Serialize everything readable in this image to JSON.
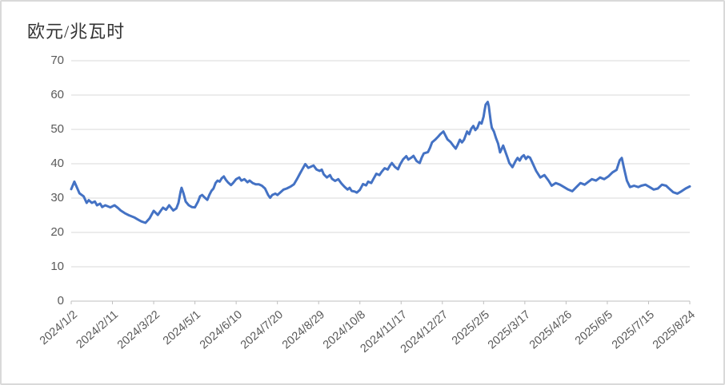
{
  "colors": {
    "line": "#4472C4",
    "gridline": "#D9D9D9",
    "axis": "#BFBFBF",
    "tick_label": "#595959",
    "title_text": "#333333",
    "frame_border": "#D9D9D9"
  },
  "chart_data": {
    "type": "line",
    "title": "欧元/兆瓦时",
    "xlabel": "",
    "ylabel": "欧元/兆瓦时",
    "ylim": [
      0,
      70
    ],
    "y_ticks": [
      0,
      10,
      20,
      30,
      40,
      50,
      60,
      70
    ],
    "grid": "horizontal",
    "legend": "none",
    "x_tick_labels": [
      "2024/1/2",
      "2024/2/11",
      "2024/3/22",
      "2024/5/1",
      "2024/6/10",
      "2024/7/20",
      "2024/8/29",
      "2024/10/8",
      "2024/11/17",
      "2024/12/27",
      "2025/2/5",
      "2025/3/17",
      "2025/4/26",
      "2025/6/5",
      "2025/7/15",
      "2025/8/24"
    ],
    "series": [
      {
        "points": [
          [
            "2024/1/2",
            32.6
          ],
          [
            "2024/1/5",
            34.8
          ],
          [
            "2024/1/8",
            32.8
          ],
          [
            "2024/1/10",
            31.4
          ],
          [
            "2024/1/14",
            30.5
          ],
          [
            "2024/1/17",
            28.6
          ],
          [
            "2024/1/19",
            29.4
          ],
          [
            "2024/1/22",
            28.6
          ],
          [
            "2024/1/25",
            29.0
          ],
          [
            "2024/1/27",
            27.9
          ],
          [
            "2024/1/30",
            28.4
          ],
          [
            "2024/2/1",
            27.4
          ],
          [
            "2024/2/4",
            27.9
          ],
          [
            "2024/2/9",
            27.3
          ],
          [
            "2024/2/13",
            27.9
          ],
          [
            "2024/2/16",
            27.2
          ],
          [
            "2024/2/19",
            26.4
          ],
          [
            "2024/2/23",
            25.6
          ],
          [
            "2024/2/27",
            25.0
          ],
          [
            "2024/3/3",
            24.4
          ],
          [
            "2024/3/7",
            23.7
          ],
          [
            "2024/3/10",
            23.2
          ],
          [
            "2024/3/14",
            22.8
          ],
          [
            "2024/3/18",
            24.1
          ],
          [
            "2024/3/22",
            26.3
          ],
          [
            "2024/3/26",
            25.1
          ],
          [
            "2024/3/29",
            26.4
          ],
          [
            "2024/3/31",
            27.2
          ],
          [
            "2024/4/3",
            26.6
          ],
          [
            "2024/4/6",
            27.9
          ],
          [
            "2024/4/10",
            26.4
          ],
          [
            "2024/4/13",
            27.0
          ],
          [
            "2024/4/15",
            28.6
          ],
          [
            "2024/4/17",
            31.8
          ],
          [
            "2024/4/18",
            33.0
          ],
          [
            "2024/4/20",
            31.3
          ],
          [
            "2024/4/22",
            29.0
          ],
          [
            "2024/4/25",
            27.9
          ],
          [
            "2024/4/28",
            27.4
          ],
          [
            "2024/5/1",
            27.3
          ],
          [
            "2024/5/4",
            29.0
          ],
          [
            "2024/5/6",
            30.5
          ],
          [
            "2024/5/8",
            30.9
          ],
          [
            "2024/5/11",
            30.0
          ],
          [
            "2024/5/13",
            29.5
          ],
          [
            "2024/5/15",
            30.9
          ],
          [
            "2024/5/17",
            32.1
          ],
          [
            "2024/5/19",
            32.8
          ],
          [
            "2024/5/21",
            34.4
          ],
          [
            "2024/5/23",
            35.1
          ],
          [
            "2024/5/25",
            34.8
          ],
          [
            "2024/5/27",
            35.8
          ],
          [
            "2024/5/29",
            36.3
          ],
          [
            "2024/5/31",
            35.3
          ],
          [
            "2024/6/2",
            34.6
          ],
          [
            "2024/6/5",
            33.8
          ],
          [
            "2024/6/7",
            34.4
          ],
          [
            "2024/6/10",
            35.5
          ],
          [
            "2024/6/13",
            36.0
          ],
          [
            "2024/6/15",
            35.1
          ],
          [
            "2024/6/18",
            35.5
          ],
          [
            "2024/6/21",
            34.6
          ],
          [
            "2024/6/23",
            35.1
          ],
          [
            "2024/6/26",
            34.4
          ],
          [
            "2024/6/29",
            34.0
          ],
          [
            "2024/7/2",
            34.0
          ],
          [
            "2024/7/5",
            33.6
          ],
          [
            "2024/7/8",
            32.8
          ],
          [
            "2024/7/11",
            30.9
          ],
          [
            "2024/7/13",
            30.1
          ],
          [
            "2024/7/15",
            30.9
          ],
          [
            "2024/7/18",
            31.3
          ],
          [
            "2024/7/20",
            30.9
          ],
          [
            "2024/7/23",
            31.7
          ],
          [
            "2024/7/26",
            32.5
          ],
          [
            "2024/7/29",
            32.8
          ],
          [
            "2024/8/2",
            33.4
          ],
          [
            "2024/8/5",
            34.0
          ],
          [
            "2024/8/8",
            35.5
          ],
          [
            "2024/8/11",
            37.2
          ],
          [
            "2024/8/13",
            38.3
          ],
          [
            "2024/8/16",
            39.9
          ],
          [
            "2024/8/19",
            38.8
          ],
          [
            "2024/8/22",
            39.2
          ],
          [
            "2024/8/24",
            39.5
          ],
          [
            "2024/8/27",
            38.3
          ],
          [
            "2024/8/30",
            37.9
          ],
          [
            "2024/9/1",
            38.3
          ],
          [
            "2024/9/3",
            36.9
          ],
          [
            "2024/9/6",
            36.0
          ],
          [
            "2024/9/9",
            36.7
          ],
          [
            "2024/9/11",
            35.6
          ],
          [
            "2024/9/14",
            35.0
          ],
          [
            "2024/9/17",
            35.5
          ],
          [
            "2024/9/20",
            34.3
          ],
          [
            "2024/9/23",
            33.3
          ],
          [
            "2024/9/26",
            32.5
          ],
          [
            "2024/9/28",
            33.0
          ],
          [
            "2024/9/30",
            32.1
          ],
          [
            "2024/10/3",
            31.9
          ],
          [
            "2024/10/5",
            31.6
          ],
          [
            "2024/10/8",
            32.4
          ],
          [
            "2024/10/11",
            34.1
          ],
          [
            "2024/10/14",
            33.7
          ],
          [
            "2024/10/16",
            34.8
          ],
          [
            "2024/10/19",
            34.4
          ],
          [
            "2024/10/21",
            35.5
          ],
          [
            "2024/10/24",
            37.1
          ],
          [
            "2024/10/27",
            36.7
          ],
          [
            "2024/10/29",
            37.6
          ],
          [
            "2024/11/1",
            38.7
          ],
          [
            "2024/11/4",
            38.3
          ],
          [
            "2024/11/6",
            39.4
          ],
          [
            "2024/11/8",
            40.2
          ],
          [
            "2024/11/11",
            39.1
          ],
          [
            "2024/11/14",
            38.4
          ],
          [
            "2024/11/16",
            39.8
          ],
          [
            "2024/11/19",
            41.3
          ],
          [
            "2024/11/22",
            42.2
          ],
          [
            "2024/11/24",
            41.2
          ],
          [
            "2024/11/27",
            41.8
          ],
          [
            "2024/11/29",
            42.3
          ],
          [
            "2024/12/2",
            40.8
          ],
          [
            "2024/12/5",
            40.2
          ],
          [
            "2024/12/7",
            41.8
          ],
          [
            "2024/12/9",
            43.0
          ],
          [
            "2024/12/13",
            43.4
          ],
          [
            "2024/12/15",
            44.6
          ],
          [
            "2024/12/17",
            46.2
          ],
          [
            "2024/12/20",
            47.0
          ],
          [
            "2024/12/23",
            47.9
          ],
          [
            "2024/12/25",
            48.6
          ],
          [
            "2024/12/28",
            49.4
          ],
          [
            "2024/12/30",
            48.2
          ],
          [
            "2025/1/1",
            47.1
          ],
          [
            "2025/1/4",
            46.3
          ],
          [
            "2025/1/7",
            45.1
          ],
          [
            "2025/1/9",
            44.4
          ],
          [
            "2025/1/11",
            45.6
          ],
          [
            "2025/1/13",
            47.0
          ],
          [
            "2025/1/15",
            46.2
          ],
          [
            "2025/1/17",
            47.0
          ],
          [
            "2025/1/20",
            49.4
          ],
          [
            "2025/1/22",
            48.6
          ],
          [
            "2025/1/24",
            50.2
          ],
          [
            "2025/1/26",
            51.0
          ],
          [
            "2025/1/28",
            49.8
          ],
          [
            "2025/1/30",
            50.5
          ],
          [
            "2025/2/1",
            52.1
          ],
          [
            "2025/2/3",
            51.7
          ],
          [
            "2025/2/5",
            53.7
          ],
          [
            "2025/2/6",
            55.6
          ],
          [
            "2025/2/7",
            57.2
          ],
          [
            "2025/2/9",
            58.0
          ],
          [
            "2025/2/10",
            56.8
          ],
          [
            "2025/2/11",
            54.4
          ],
          [
            "2025/2/12",
            52.1
          ],
          [
            "2025/2/13",
            50.5
          ],
          [
            "2025/2/15",
            49.4
          ],
          [
            "2025/2/17",
            47.5
          ],
          [
            "2025/2/19",
            45.9
          ],
          [
            "2025/2/21",
            43.3
          ],
          [
            "2025/2/24",
            45.3
          ],
          [
            "2025/2/26",
            43.6
          ],
          [
            "2025/2/28",
            41.9
          ],
          [
            "2025/3/2",
            40.2
          ],
          [
            "2025/3/5",
            39.0
          ],
          [
            "2025/3/8",
            40.8
          ],
          [
            "2025/3/10",
            41.7
          ],
          [
            "2025/3/12",
            40.9
          ],
          [
            "2025/3/14",
            42.0
          ],
          [
            "2025/3/16",
            42.5
          ],
          [
            "2025/3/18",
            41.4
          ],
          [
            "2025/3/20",
            42.1
          ],
          [
            "2025/3/22",
            41.8
          ],
          [
            "2025/3/24",
            40.5
          ],
          [
            "2025/3/28",
            37.9
          ],
          [
            "2025/4/1",
            36.0
          ],
          [
            "2025/4/5",
            36.7
          ],
          [
            "2025/4/9",
            35.1
          ],
          [
            "2025/4/12",
            33.6
          ],
          [
            "2025/4/16",
            34.4
          ],
          [
            "2025/4/20",
            33.9
          ],
          [
            "2025/4/24",
            33.2
          ],
          [
            "2025/4/28",
            32.5
          ],
          [
            "2025/5/2",
            32.0
          ],
          [
            "2025/5/6",
            33.2
          ],
          [
            "2025/5/10",
            34.4
          ],
          [
            "2025/5/14",
            33.9
          ],
          [
            "2025/5/17",
            34.6
          ],
          [
            "2025/5/21",
            35.5
          ],
          [
            "2025/5/25",
            35.1
          ],
          [
            "2025/5/29",
            36.0
          ],
          [
            "2025/6/2",
            35.5
          ],
          [
            "2025/6/6",
            36.3
          ],
          [
            "2025/6/10",
            37.5
          ],
          [
            "2025/6/14",
            38.2
          ],
          [
            "2025/6/17",
            41.0
          ],
          [
            "2025/6/19",
            41.7
          ],
          [
            "2025/6/21",
            39.0
          ],
          [
            "2025/6/24",
            35.1
          ],
          [
            "2025/6/27",
            33.2
          ],
          [
            "2025/7/1",
            33.6
          ],
          [
            "2025/7/5",
            33.2
          ],
          [
            "2025/7/8",
            33.6
          ],
          [
            "2025/7/12",
            33.9
          ],
          [
            "2025/7/16",
            33.2
          ],
          [
            "2025/7/20",
            32.5
          ],
          [
            "2025/7/24",
            32.8
          ],
          [
            "2025/7/28",
            33.9
          ],
          [
            "2025/8/1",
            33.6
          ],
          [
            "2025/8/5",
            32.5
          ],
          [
            "2025/8/8",
            31.7
          ],
          [
            "2025/8/12",
            31.3
          ],
          [
            "2025/8/16",
            32.0
          ],
          [
            "2025/8/20",
            32.8
          ],
          [
            "2025/8/24",
            33.4
          ]
        ]
      }
    ]
  }
}
